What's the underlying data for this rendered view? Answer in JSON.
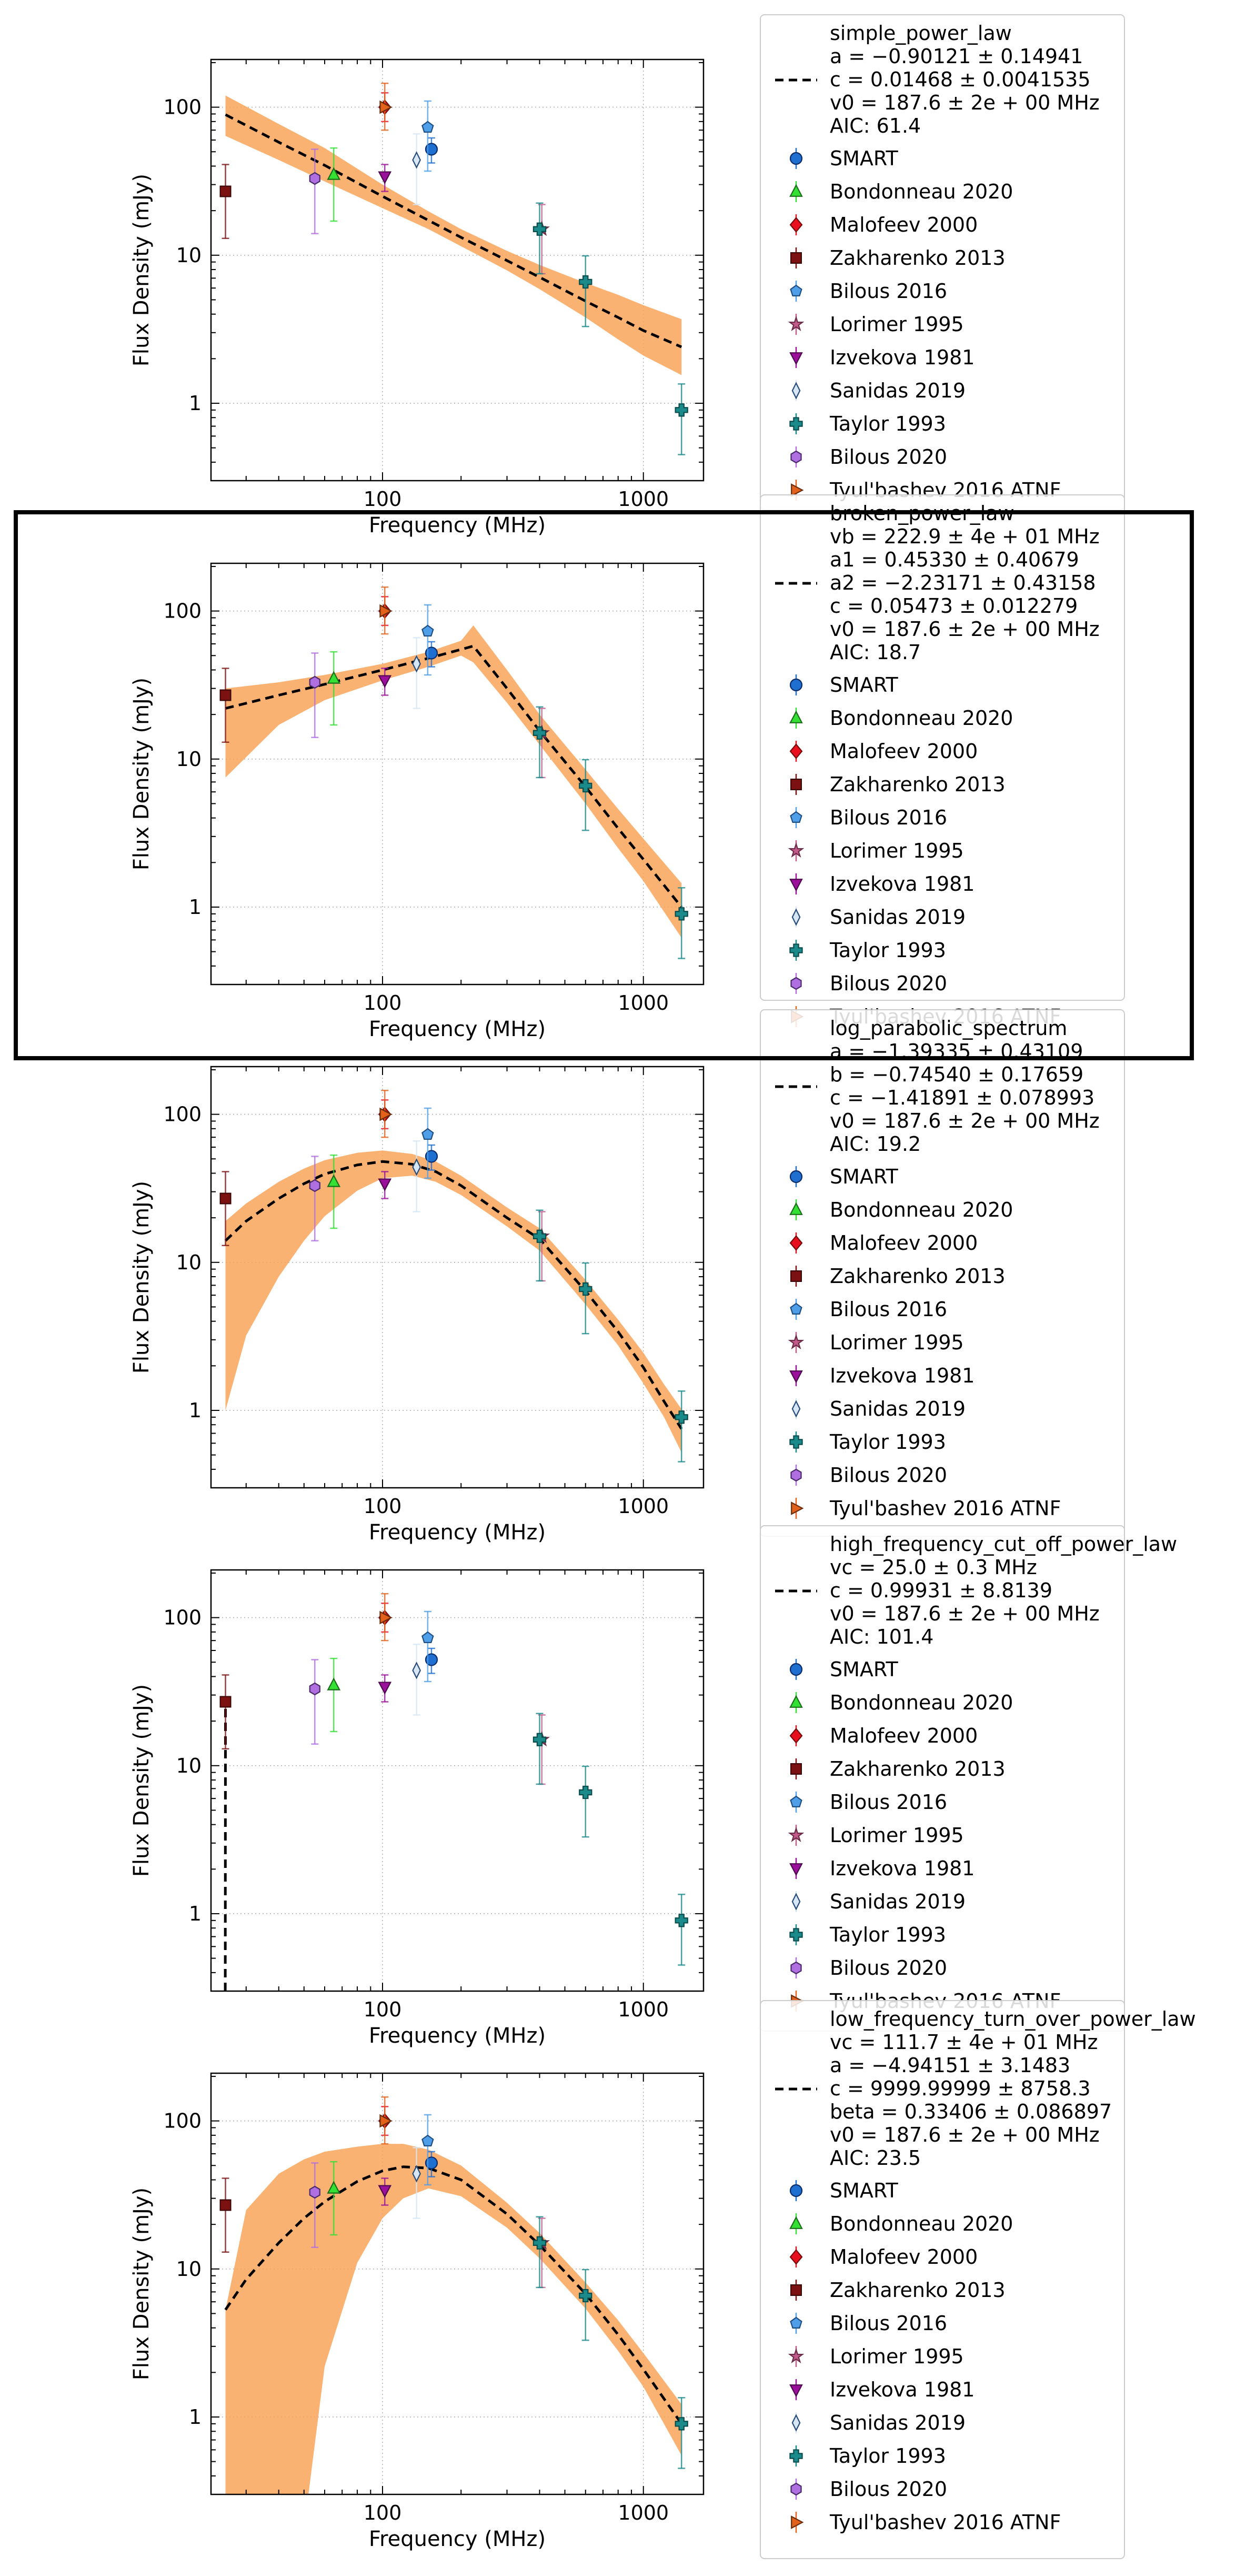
{
  "figure": {
    "highlight_panel": 1
  },
  "shared": {
    "xlabel": "Frequency (MHz)",
    "ylabel": "Flux Density (mJy)",
    "x_scale": "log",
    "y_scale": "log",
    "xlim": [
      22,
      1700
    ],
    "ylim": [
      0.3,
      210
    ],
    "x_ticks": [
      {
        "value": 100,
        "label": "100"
      },
      {
        "value": 1000,
        "label": "1000"
      }
    ],
    "y_ticks": [
      {
        "value": 1,
        "label": "1"
      },
      {
        "value": 10,
        "label": "10"
      },
      {
        "value": 100,
        "label": "100"
      }
    ],
    "grid": "dotted",
    "legend_placement": "outside-right"
  },
  "chart_data": {
    "type": "scatter",
    "datasets": [
      {
        "name": "SMART",
        "marker": "circle",
        "color": "#1f6fd1",
        "edge": "#0b2c6b",
        "points": [
          {
            "x": 154,
            "y": 52,
            "lo": 42,
            "hi": 62
          }
        ]
      },
      {
        "name": "Bondonneau 2020",
        "marker": "triangle-up",
        "color": "#33e033",
        "edge": "#1a6e1a",
        "points": [
          {
            "x": 65,
            "y": 35,
            "lo": 17,
            "hi": 53
          }
        ]
      },
      {
        "name": "Malofeev 2000",
        "marker": "diamond",
        "color": "#e8101e",
        "edge": "#7a0a0a",
        "points": [
          {
            "x": 102,
            "y": 100,
            "lo": 80,
            "hi": 125
          }
        ]
      },
      {
        "name": "Zakharenko 2013",
        "marker": "square",
        "color": "#7b1111",
        "edge": "#3d0808",
        "points": [
          {
            "x": 25,
            "y": 27,
            "lo": 13,
            "hi": 41
          }
        ]
      },
      {
        "name": "Bilous 2016",
        "marker": "pentagon",
        "color": "#4e9ee8",
        "edge": "#1e4e82",
        "points": [
          {
            "x": 149,
            "y": 73,
            "lo": 37,
            "hi": 110
          }
        ]
      },
      {
        "name": "Lorimer 1995",
        "marker": "star",
        "color": "#c25b8a",
        "edge": "#6b2b49",
        "points": [
          {
            "x": 408,
            "y": 15,
            "lo": 7.5,
            "hi": 22
          }
        ]
      },
      {
        "name": "Izvekova 1981",
        "marker": "triangle-down",
        "color": "#9b109b",
        "edge": "#4e084e",
        "points": [
          {
            "x": 102,
            "y": 34,
            "lo": 27,
            "hi": 41
          }
        ]
      },
      {
        "name": "Sanidas 2019",
        "marker": "thin-diamond",
        "color": "#d6e6f5",
        "edge": "#2a4d7a",
        "points": [
          {
            "x": 135,
            "y": 44,
            "lo": 22,
            "hi": 66
          }
        ]
      },
      {
        "name": "Taylor 1993",
        "marker": "plus",
        "color": "#1a8a8a",
        "edge": "#0b4d4d",
        "points": [
          {
            "x": 400,
            "y": 15,
            "lo": 7.5,
            "hi": 22.5
          },
          {
            "x": 600,
            "y": 6.6,
            "lo": 3.3,
            "hi": 9.9
          },
          {
            "x": 1400,
            "y": 0.9,
            "lo": 0.45,
            "hi": 1.35
          }
        ]
      },
      {
        "name": "Bilous 2020",
        "marker": "hexagon",
        "color": "#b06fe0",
        "edge": "#4a2a6b",
        "points": [
          {
            "x": 55,
            "y": 33,
            "lo": 14,
            "hi": 52
          }
        ]
      },
      {
        "name": "Tyul'bashev 2016 ATNF",
        "marker": "triangle-right",
        "color": "#e2621b",
        "edge": "#6b2e0d",
        "points": [
          {
            "x": 102,
            "y": 100,
            "lo": 70,
            "hi": 145
          }
        ]
      }
    ],
    "panels": [
      {
        "model": "simple_power_law",
        "params": [
          "a = −0.90121 ± 0.14941",
          "c = 0.01468 ± 0.0041535",
          "v0 = 187.6 ± 2e + 00 MHz",
          "AIC: 61.4"
        ],
        "fit_curve": [
          [
            25,
            89
          ],
          [
            40,
            58
          ],
          [
            60,
            40.5
          ],
          [
            100,
            25
          ],
          [
            150,
            17.2
          ],
          [
            200,
            13.2
          ],
          [
            300,
            9.2
          ],
          [
            400,
            7.1
          ],
          [
            600,
            4.9
          ],
          [
            800,
            3.8
          ],
          [
            1000,
            3.1
          ],
          [
            1400,
            2.4
          ]
        ],
        "band_upper": [
          [
            25,
            120
          ],
          [
            40,
            77
          ],
          [
            60,
            53
          ],
          [
            100,
            30
          ],
          [
            150,
            19.8
          ],
          [
            200,
            15
          ],
          [
            300,
            10.7
          ],
          [
            400,
            8.6
          ],
          [
            600,
            6.5
          ],
          [
            800,
            5.4
          ],
          [
            1000,
            4.6
          ],
          [
            1400,
            3.7
          ]
        ],
        "band_lower": [
          [
            25,
            64
          ],
          [
            40,
            44
          ],
          [
            60,
            31.5
          ],
          [
            100,
            20.8
          ],
          [
            150,
            15
          ],
          [
            200,
            11.5
          ],
          [
            300,
            7.9
          ],
          [
            400,
            5.9
          ],
          [
            600,
            3.8
          ],
          [
            800,
            2.7
          ],
          [
            1000,
            2.1
          ],
          [
            1400,
            1.55
          ]
        ]
      },
      {
        "model": "broken_power_law",
        "params": [
          "vb = 222.9 ± 4e + 01 MHz",
          "a1 = 0.45330 ± 0.40679",
          "a2 = −2.23171 ± 0.43158",
          "c = 0.05473 ± 0.012279",
          "v0 = 187.6 ± 2e + 00 MHz",
          "AIC: 18.7"
        ],
        "fit_curve": [
          [
            25,
            22
          ],
          [
            40,
            27
          ],
          [
            60,
            32
          ],
          [
            100,
            40
          ],
          [
            150,
            48
          ],
          [
            200,
            55
          ],
          [
            222.9,
            58
          ],
          [
            300,
            30
          ],
          [
            400,
            15.5
          ],
          [
            600,
            6.5
          ],
          [
            800,
            3.4
          ],
          [
            1000,
            2.1
          ],
          [
            1400,
            1.0
          ]
        ],
        "band_upper": [
          [
            25,
            30
          ],
          [
            40,
            33
          ],
          [
            60,
            37
          ],
          [
            100,
            44
          ],
          [
            150,
            53
          ],
          [
            200,
            63
          ],
          [
            222.9,
            80
          ],
          [
            300,
            40
          ],
          [
            400,
            20
          ],
          [
            600,
            8.5
          ],
          [
            800,
            4.6
          ],
          [
            1000,
            2.9
          ],
          [
            1400,
            1.45
          ]
        ],
        "band_lower": [
          [
            25,
            7.5
          ],
          [
            40,
            17
          ],
          [
            60,
            25
          ],
          [
            100,
            34
          ],
          [
            150,
            42
          ],
          [
            200,
            50
          ],
          [
            222.9,
            45
          ],
          [
            300,
            24
          ],
          [
            400,
            12.5
          ],
          [
            600,
            5.0
          ],
          [
            800,
            2.5
          ],
          [
            1000,
            1.5
          ],
          [
            1400,
            0.62
          ]
        ]
      },
      {
        "model": "log_parabolic_spectrum",
        "params": [
          "a = −1.39335 ± 0.43109",
          "b = −0.74540 ± 0.17659",
          "c = −1.41891 ± 0.078993",
          "v0 = 187.6 ± 2e + 00 MHz",
          "AIC: 19.2"
        ],
        "fit_curve": [
          [
            25,
            14
          ],
          [
            30,
            19
          ],
          [
            40,
            27
          ],
          [
            50,
            34
          ],
          [
            60,
            39.5
          ],
          [
            80,
            45.5
          ],
          [
            100,
            48
          ],
          [
            130,
            46
          ],
          [
            160,
            41
          ],
          [
            200,
            33
          ],
          [
            300,
            20
          ],
          [
            400,
            14.4
          ],
          [
            600,
            6.4
          ],
          [
            800,
            3.4
          ],
          [
            1000,
            1.95
          ],
          [
            1200,
            1.15
          ],
          [
            1400,
            0.75
          ]
        ],
        "band_upper": [
          [
            25,
            19
          ],
          [
            30,
            25
          ],
          [
            40,
            35
          ],
          [
            50,
            43
          ],
          [
            60,
            49
          ],
          [
            80,
            55
          ],
          [
            100,
            57
          ],
          [
            130,
            54
          ],
          [
            160,
            48
          ],
          [
            200,
            38.5
          ],
          [
            300,
            23.5
          ],
          [
            400,
            17
          ],
          [
            600,
            7.6
          ],
          [
            800,
            4.1
          ],
          [
            1000,
            2.45
          ],
          [
            1200,
            1.5
          ],
          [
            1400,
            1.02
          ]
        ],
        "band_lower": [
          [
            25,
            1.0
          ],
          [
            30,
            3.2
          ],
          [
            40,
            8
          ],
          [
            50,
            14
          ],
          [
            60,
            20.5
          ],
          [
            80,
            30.5
          ],
          [
            100,
            37
          ],
          [
            130,
            38.5
          ],
          [
            160,
            35
          ],
          [
            200,
            28.5
          ],
          [
            300,
            17.5
          ],
          [
            400,
            12
          ],
          [
            600,
            5.2
          ],
          [
            800,
            2.75
          ],
          [
            1000,
            1.52
          ],
          [
            1200,
            0.9
          ],
          [
            1400,
            0.52
          ]
        ]
      },
      {
        "model": "high_frequency_cut_off_power_law",
        "params": [
          "vc = 25.0 ± 0.3 MHz",
          "c = 0.99931 ± 8.8139",
          "v0 = 187.6 ± 2e + 00 MHz",
          "AIC: 101.4"
        ],
        "fit_curve": [
          [
            24.95,
            0.3
          ],
          [
            25,
            27
          ]
        ],
        "band_upper": [],
        "band_lower": []
      },
      {
        "model": "low_frequency_turn_over_power_law",
        "params": [
          "vc = 111.7 ± 4e + 01 MHz",
          "a = −4.94151 ± 3.1483",
          "c = 9999.99999 ± 8758.3",
          "beta = 0.33406 ± 0.086897",
          "v0 = 187.6 ± 2e + 00 MHz",
          "AIC: 23.5"
        ],
        "fit_curve": [
          [
            25,
            5.3
          ],
          [
            30,
            8.5
          ],
          [
            40,
            15
          ],
          [
            50,
            22
          ],
          [
            60,
            28.5
          ],
          [
            80,
            39
          ],
          [
            100,
            46
          ],
          [
            120,
            49
          ],
          [
            150,
            48
          ],
          [
            200,
            40
          ],
          [
            300,
            23.5
          ],
          [
            400,
            14.5
          ],
          [
            600,
            6.8
          ],
          [
            800,
            3.6
          ],
          [
            1000,
            2.1
          ],
          [
            1400,
            0.9
          ]
        ],
        "band_upper": [
          [
            25,
            5.3
          ],
          [
            30,
            25
          ],
          [
            40,
            44
          ],
          [
            50,
            55
          ],
          [
            60,
            62
          ],
          [
            80,
            67
          ],
          [
            100,
            70
          ],
          [
            120,
            70
          ],
          [
            150,
            64
          ],
          [
            200,
            50
          ],
          [
            300,
            28
          ],
          [
            400,
            17.5
          ],
          [
            600,
            8.1
          ],
          [
            800,
            4.5
          ],
          [
            1000,
            2.7
          ],
          [
            1400,
            1.22
          ]
        ],
        "band_lower": [
          [
            25,
            0.3
          ],
          [
            50,
            0.3
          ],
          [
            52,
            0.3
          ],
          [
            60,
            2.2
          ],
          [
            80,
            11
          ],
          [
            100,
            22
          ],
          [
            120,
            30
          ],
          [
            150,
            35
          ],
          [
            200,
            31
          ],
          [
            300,
            19
          ],
          [
            400,
            11.8
          ],
          [
            600,
            5.4
          ],
          [
            800,
            2.8
          ],
          [
            1000,
            1.6
          ],
          [
            1400,
            0.55
          ]
        ]
      }
    ]
  },
  "colors": {
    "fit_line": "#000000",
    "band": "#f9a55a",
    "highlight_box": "#000000",
    "grid": "#b0b0b0"
  }
}
